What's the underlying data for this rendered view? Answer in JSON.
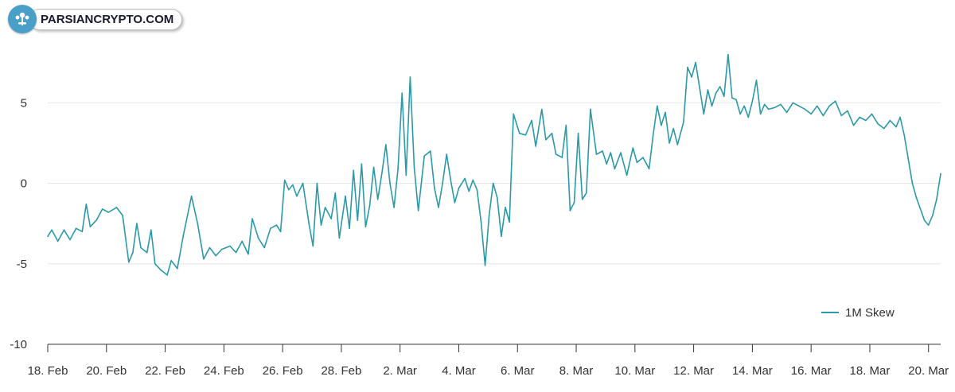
{
  "logo": {
    "text": "PARSIANCRYPTO.COM",
    "icon": "tree-icon",
    "color": "#4a9fc9"
  },
  "chart_data": {
    "type": "line",
    "title": "",
    "xlabel": "",
    "ylabel": "",
    "ylim": [
      -10,
      10
    ],
    "yticks": [
      -10,
      -5,
      0,
      5
    ],
    "xtick_labels": [
      "18. Feb",
      "20. Feb",
      "22. Feb",
      "24. Feb",
      "26. Feb",
      "28. Feb",
      "2. Mar",
      "4. Mar",
      "6. Mar",
      "8. Mar",
      "10. Mar",
      "12. Mar",
      "14. Mar",
      "16. Mar",
      "18. Mar",
      "20. Mar"
    ],
    "grid": true,
    "legend_position": "bottom-right",
    "series": [
      {
        "name": "1M Skew",
        "color": "#2b9aa8",
        "points": [
          [
            0.0,
            -3.3
          ],
          [
            0.1,
            -2.9
          ],
          [
            0.25,
            -3.6
          ],
          [
            0.4,
            -2.9
          ],
          [
            0.55,
            -3.5
          ],
          [
            0.7,
            -2.8
          ],
          [
            0.85,
            -3.0
          ],
          [
            0.95,
            -1.3
          ],
          [
            1.05,
            -2.7
          ],
          [
            1.2,
            -2.3
          ],
          [
            1.35,
            -1.6
          ],
          [
            1.5,
            -1.8
          ],
          [
            1.7,
            -1.5
          ],
          [
            1.85,
            -2.0
          ],
          [
            2.0,
            -4.9
          ],
          [
            2.1,
            -4.3
          ],
          [
            2.2,
            -2.5
          ],
          [
            2.3,
            -4.0
          ],
          [
            2.45,
            -4.3
          ],
          [
            2.55,
            -2.9
          ],
          [
            2.65,
            -5.0
          ],
          [
            2.8,
            -5.4
          ],
          [
            2.95,
            -5.7
          ],
          [
            3.05,
            -4.8
          ],
          [
            3.2,
            -5.3
          ],
          [
            3.35,
            -3.2
          ],
          [
            3.45,
            -2.0
          ],
          [
            3.55,
            -0.8
          ],
          [
            3.7,
            -2.5
          ],
          [
            3.85,
            -4.7
          ],
          [
            4.0,
            -4.0
          ],
          [
            4.15,
            -4.5
          ],
          [
            4.3,
            -4.1
          ],
          [
            4.5,
            -3.9
          ],
          [
            4.65,
            -4.3
          ],
          [
            4.8,
            -3.6
          ],
          [
            4.95,
            -4.4
          ],
          [
            5.05,
            -2.2
          ],
          [
            5.2,
            -3.4
          ],
          [
            5.35,
            -4.0
          ],
          [
            5.5,
            -2.8
          ],
          [
            5.65,
            -2.6
          ],
          [
            5.75,
            -3.0
          ],
          [
            5.85,
            0.2
          ],
          [
            5.95,
            -0.4
          ],
          [
            6.05,
            -0.1
          ],
          [
            6.15,
            -0.8
          ],
          [
            6.3,
            0.0
          ],
          [
            6.45,
            -2.5
          ],
          [
            6.55,
            -3.9
          ],
          [
            6.65,
            0.0
          ],
          [
            6.75,
            -2.6
          ],
          [
            6.85,
            -1.5
          ],
          [
            7.0,
            -2.2
          ],
          [
            7.1,
            -0.6
          ],
          [
            7.2,
            -3.4
          ],
          [
            7.35,
            -0.8
          ],
          [
            7.45,
            -2.8
          ],
          [
            7.55,
            0.8
          ],
          [
            7.65,
            -2.3
          ],
          [
            7.75,
            1.2
          ],
          [
            7.85,
            -2.7
          ],
          [
            7.95,
            -1.4
          ],
          [
            8.05,
            1.0
          ],
          [
            8.15,
            -1.0
          ],
          [
            8.25,
            0.6
          ],
          [
            8.35,
            2.4
          ],
          [
            8.45,
            0.0
          ],
          [
            8.55,
            -1.5
          ],
          [
            8.65,
            0.9
          ],
          [
            8.75,
            5.6
          ],
          [
            8.85,
            0.5
          ],
          [
            8.95,
            6.6
          ],
          [
            9.05,
            1.0
          ],
          [
            9.15,
            -1.7
          ],
          [
            9.3,
            1.7
          ],
          [
            9.45,
            2.0
          ],
          [
            9.55,
            -0.3
          ],
          [
            9.65,
            -1.5
          ],
          [
            9.75,
            0.0
          ],
          [
            9.85,
            1.8
          ],
          [
            9.95,
            0.2
          ],
          [
            10.05,
            -1.2
          ],
          [
            10.15,
            -0.3
          ],
          [
            10.3,
            0.3
          ],
          [
            10.4,
            -0.5
          ],
          [
            10.5,
            0.2
          ],
          [
            10.6,
            -0.4
          ],
          [
            10.7,
            -2.4
          ],
          [
            10.8,
            -5.1
          ],
          [
            10.9,
            -2.0
          ],
          [
            11.0,
            0.0
          ],
          [
            11.1,
            -0.9
          ],
          [
            11.2,
            -3.3
          ],
          [
            11.3,
            -1.5
          ],
          [
            11.4,
            -2.4
          ],
          [
            11.5,
            4.3
          ],
          [
            11.65,
            3.1
          ],
          [
            11.8,
            3.0
          ],
          [
            11.95,
            3.9
          ],
          [
            12.05,
            2.3
          ],
          [
            12.2,
            4.6
          ],
          [
            12.3,
            2.7
          ],
          [
            12.45,
            3.1
          ],
          [
            12.55,
            1.8
          ],
          [
            12.7,
            1.6
          ],
          [
            12.8,
            3.6
          ],
          [
            12.9,
            -1.7
          ],
          [
            13.0,
            -1.2
          ],
          [
            13.1,
            3.1
          ],
          [
            13.2,
            -1.0
          ],
          [
            13.3,
            -0.6
          ],
          [
            13.4,
            4.6
          ],
          [
            13.55,
            1.8
          ],
          [
            13.7,
            2.0
          ],
          [
            13.8,
            1.2
          ],
          [
            13.9,
            1.9
          ],
          [
            14.0,
            0.9
          ],
          [
            14.15,
            1.9
          ],
          [
            14.3,
            0.5
          ],
          [
            14.45,
            2.2
          ],
          [
            14.55,
            1.3
          ],
          [
            14.7,
            1.6
          ],
          [
            14.85,
            0.9
          ],
          [
            14.95,
            3.0
          ],
          [
            15.05,
            4.8
          ],
          [
            15.15,
            3.6
          ],
          [
            15.25,
            4.4
          ],
          [
            15.35,
            2.5
          ],
          [
            15.45,
            3.4
          ],
          [
            15.55,
            2.4
          ],
          [
            15.7,
            3.8
          ],
          [
            15.8,
            7.2
          ],
          [
            15.9,
            6.6
          ],
          [
            16.0,
            7.5
          ],
          [
            16.1,
            5.9
          ],
          [
            16.2,
            4.3
          ],
          [
            16.3,
            5.8
          ],
          [
            16.4,
            4.8
          ],
          [
            16.5,
            5.6
          ],
          [
            16.6,
            6.0
          ],
          [
            16.7,
            5.4
          ],
          [
            16.8,
            8.0
          ],
          [
            16.9,
            5.3
          ],
          [
            17.0,
            5.2
          ],
          [
            17.1,
            4.3
          ],
          [
            17.2,
            4.8
          ],
          [
            17.3,
            4.1
          ],
          [
            17.4,
            5.1
          ],
          [
            17.5,
            6.4
          ],
          [
            17.6,
            4.3
          ],
          [
            17.7,
            4.9
          ],
          [
            17.8,
            4.6
          ],
          [
            17.95,
            4.7
          ],
          [
            18.1,
            4.9
          ],
          [
            18.25,
            4.4
          ],
          [
            18.4,
            5.0
          ],
          [
            18.55,
            4.8
          ],
          [
            18.7,
            4.6
          ],
          [
            18.85,
            4.3
          ],
          [
            19.0,
            4.8
          ],
          [
            19.15,
            4.2
          ],
          [
            19.3,
            4.8
          ],
          [
            19.45,
            5.1
          ],
          [
            19.6,
            4.2
          ],
          [
            19.75,
            4.5
          ],
          [
            19.9,
            3.6
          ],
          [
            20.05,
            4.1
          ],
          [
            20.2,
            3.9
          ],
          [
            20.35,
            4.3
          ],
          [
            20.5,
            3.7
          ],
          [
            20.65,
            3.4
          ],
          [
            20.8,
            3.9
          ],
          [
            20.95,
            3.5
          ],
          [
            21.05,
            4.1
          ],
          [
            21.15,
            3.0
          ],
          [
            21.25,
            1.5
          ],
          [
            21.35,
            0.0
          ],
          [
            21.45,
            -0.9
          ],
          [
            21.55,
            -1.6
          ],
          [
            21.65,
            -2.3
          ],
          [
            21.75,
            -2.6
          ],
          [
            21.85,
            -2.0
          ],
          [
            21.95,
            -1.0
          ],
          [
            22.05,
            0.6
          ]
        ]
      }
    ]
  }
}
